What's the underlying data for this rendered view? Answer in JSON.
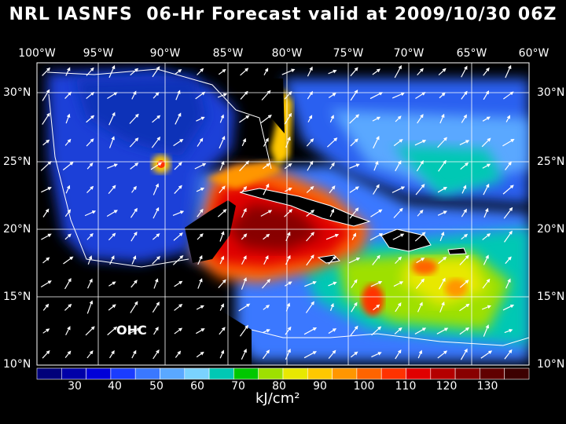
{
  "title": "NRL IASNFS  06-Hr Forecast valid at 2009/10/30 06Z",
  "lon_labels": [
    "100°W",
    "95°W",
    "90°W",
    "85°W",
    "80°W",
    "75°W",
    "70°W",
    "65°W",
    "60°W"
  ],
  "lat_labels": [
    "30°N",
    "25°N",
    "20°N",
    "15°N",
    "10°N"
  ],
  "map_label": "OHC",
  "colorbar": {
    "ticks": [
      "30",
      "40",
      "50",
      "60",
      "70",
      "80",
      "90",
      "100",
      "110",
      "120",
      "130"
    ],
    "unit": "kJ/cm²",
    "colors": [
      "#00007a",
      "#0000a8",
      "#0000d8",
      "#1a3cff",
      "#3a78ff",
      "#5aa8ff",
      "#7ad2ff",
      "#00c8b4",
      "#00c800",
      "#9ee000",
      "#e8e800",
      "#ffc800",
      "#ff9600",
      "#ff6400",
      "#ff3200",
      "#e00000",
      "#b40000",
      "#880000",
      "#600000",
      "#3c0000"
    ]
  },
  "colors": {
    "background": "#000000",
    "text": "#ffffff",
    "land": "#000000",
    "grid": "#ffffff"
  }
}
